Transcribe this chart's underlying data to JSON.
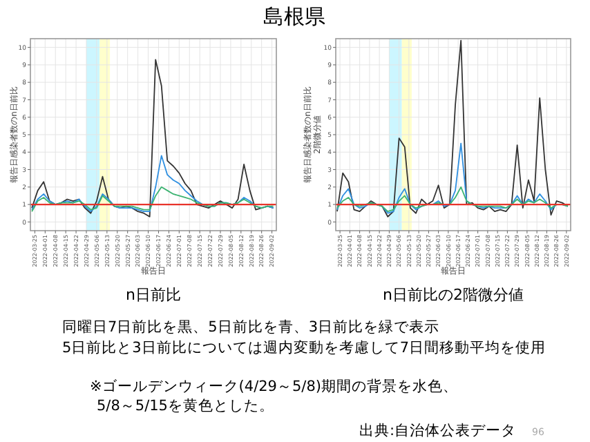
{
  "chart_data": [
    {
      "type": "other",
      "title": "島根県",
      "annotations": [
        "同曜日7日前比を黒、5日前比を青、3日前比を緑で表示",
        "5日前比と3日前比については週内変動を考慮して7日間移動平均を使用",
        "※ゴールデンウィーク(4/29～5/8)期間の背景を水色、",
        "5/8～5/15を黄色とした。",
        "出典:自治体公表データ",
        "96"
      ]
    },
    {
      "type": "line",
      "title": "n日前比",
      "xlabel": "報告日",
      "ylabel": "報告日感染者数のn日前比",
      "grid": true,
      "xlim": [
        "2022-03-22",
        "2022-09-05"
      ],
      "xticks": [
        {
          "value": "2022-03-25",
          "label": "2022-03-25"
        },
        {
          "value": "2022-04-01",
          "label": "2022-04-01"
        },
        {
          "value": "2022-04-08",
          "label": "2022-04-08"
        },
        {
          "value": "2022-04-15",
          "label": "2022-04-15"
        },
        {
          "value": "2022-04-22",
          "label": "2022-04-22"
        },
        {
          "value": "2022-04-29",
          "label": "2022-04-29"
        },
        {
          "value": "2022-05-06",
          "label": "2022-05-06"
        },
        {
          "value": "2022-05-13",
          "label": "2022-05-13"
        },
        {
          "value": "2022-05-20",
          "label": "2022-05-20"
        },
        {
          "value": "2022-05-27",
          "label": "2022-05-27"
        },
        {
          "value": "2022-06-03",
          "label": "2022-06-03"
        },
        {
          "value": "2022-06-10",
          "label": "2022-06-10"
        },
        {
          "value": "2022-06-17",
          "label": "2022-06-17"
        },
        {
          "value": "2022-06-24",
          "label": "2022-06-24"
        },
        {
          "value": "2022-07-01",
          "label": "2022-07-01"
        },
        {
          "value": "2022-07-08",
          "label": "2022-07-08"
        },
        {
          "value": "2022-07-15",
          "label": "2022-07-15"
        },
        {
          "value": "2022-07-22",
          "label": "2022-07-22"
        },
        {
          "value": "2022-07-29",
          "label": "2022-07-29"
        },
        {
          "value": "2022-08-05",
          "label": "2022-08-05"
        },
        {
          "value": "2022-08-12",
          "label": "2022-08-12"
        },
        {
          "value": "2022-08-19",
          "label": "2022-08-19"
        },
        {
          "value": "2022-08-26",
          "label": "2022-08-26"
        },
        {
          "value": "2022-09-02",
          "label": "2022-09-02"
        }
      ],
      "ylim": [
        -0.5,
        10.5
      ],
      "yticks": [
        0,
        1,
        2,
        3,
        4,
        5,
        6,
        7,
        8,
        9,
        10
      ],
      "x": [
        "2022-03-23",
        "2022-03-27",
        "2022-03-31",
        "2022-04-04",
        "2022-04-08",
        "2022-04-12",
        "2022-04-16",
        "2022-04-20",
        "2022-04-24",
        "2022-04-28",
        "2022-05-02",
        "2022-05-06",
        "2022-05-10",
        "2022-05-14",
        "2022-05-18",
        "2022-05-22",
        "2022-05-26",
        "2022-05-30",
        "2022-06-03",
        "2022-06-07",
        "2022-06-11",
        "2022-06-15",
        "2022-06-19",
        "2022-06-23",
        "2022-06-27",
        "2022-07-01",
        "2022-07-05",
        "2022-07-09",
        "2022-07-13",
        "2022-07-17",
        "2022-07-21",
        "2022-07-25",
        "2022-07-29",
        "2022-08-02",
        "2022-08-06",
        "2022-08-10",
        "2022-08-14",
        "2022-08-18",
        "2022-08-22",
        "2022-08-26",
        "2022-08-30",
        "2022-09-03"
      ],
      "series": [
        {
          "color": "#333333",
          "values": [
            0.8,
            1.8,
            2.3,
            1.2,
            1.0,
            1.1,
            1.3,
            1.2,
            1.3,
            0.8,
            0.5,
            1.2,
            2.6,
            1.3,
            0.9,
            0.8,
            0.9,
            0.8,
            0.6,
            0.5,
            0.3,
            9.3,
            7.8,
            3.5,
            3.2,
            2.8,
            2.2,
            1.8,
            1.0,
            0.9,
            0.8,
            1.0,
            1.2,
            1.0,
            0.8,
            1.3,
            3.3,
            1.8,
            0.7,
            0.8,
            0.9,
            0.8
          ]
        },
        {
          "color": "#2f8fe0",
          "values": [
            0.7,
            1.3,
            1.6,
            1.2,
            1.0,
            1.1,
            1.2,
            1.1,
            1.3,
            0.9,
            0.6,
            0.9,
            1.6,
            1.3,
            0.9,
            0.8,
            0.8,
            0.8,
            0.7,
            0.6,
            0.6,
            2.0,
            3.8,
            2.7,
            2.4,
            2.2,
            1.8,
            1.5,
            1.2,
            1.0,
            0.9,
            0.9,
            1.1,
            1.1,
            1.0,
            1.1,
            1.4,
            1.2,
            0.9,
            0.8,
            0.9,
            0.8
          ]
        },
        {
          "color": "#3cb371",
          "values": [
            0.6,
            1.2,
            1.4,
            1.1,
            1.0,
            1.1,
            1.1,
            1.1,
            1.2,
            1.0,
            0.7,
            0.8,
            1.5,
            1.2,
            0.9,
            0.9,
            0.9,
            0.9,
            0.8,
            0.7,
            0.7,
            1.5,
            2.0,
            1.8,
            1.6,
            1.5,
            1.4,
            1.3,
            1.1,
            1.0,
            0.9,
            0.9,
            1.1,
            1.1,
            1.0,
            1.1,
            1.3,
            1.1,
            0.9,
            0.8,
            0.9,
            0.9
          ]
        }
      ],
      "bands": [
        {
          "axis": "x",
          "from": "2022-04-29",
          "to": "2022-05-08",
          "color": "#ccf6ff"
        },
        {
          "axis": "x",
          "from": "2022-05-08",
          "to": "2022-05-15",
          "color": "#ffffcc"
        }
      ],
      "ref_lines": [
        {
          "axis": "y",
          "value": 1,
          "color": "#e8332a"
        }
      ]
    },
    {
      "type": "line",
      "title": "n日前比の2階微分値",
      "xlabel": "報告日",
      "ylabel": "報告日感染者数のn日前比\n2階微分値",
      "grid": true,
      "xlim": [
        "2022-03-22",
        "2022-09-05"
      ],
      "xticks": [
        {
          "value": "2022-03-25",
          "label": "2022-03-25"
        },
        {
          "value": "2022-04-01",
          "label": "2022-04-01"
        },
        {
          "value": "2022-04-08",
          "label": "2022-04-08"
        },
        {
          "value": "2022-04-15",
          "label": "2022-04-15"
        },
        {
          "value": "2022-04-22",
          "label": "2022-04-22"
        },
        {
          "value": "2022-04-29",
          "label": "2022-04-29"
        },
        {
          "value": "2022-05-06",
          "label": "2022-05-06"
        },
        {
          "value": "2022-05-13",
          "label": "2022-05-13"
        },
        {
          "value": "2022-05-20",
          "label": "2022-05-20"
        },
        {
          "value": "2022-05-27",
          "label": "2022-05-27"
        },
        {
          "value": "2022-06-03",
          "label": "2022-06-03"
        },
        {
          "value": "2022-06-10",
          "label": "2022-06-10"
        },
        {
          "value": "2022-06-17",
          "label": "2022-06-17"
        },
        {
          "value": "2022-06-24",
          "label": "2022-06-24"
        },
        {
          "value": "2022-07-01",
          "label": "2022-07-01"
        },
        {
          "value": "2022-07-08",
          "label": "2022-07-08"
        },
        {
          "value": "2022-07-15",
          "label": "2022-07-15"
        },
        {
          "value": "2022-07-22",
          "label": "2022-07-22"
        },
        {
          "value": "2022-07-29",
          "label": "2022-07-29"
        },
        {
          "value": "2022-08-05",
          "label": "2022-08-05"
        },
        {
          "value": "2022-08-12",
          "label": "2022-08-12"
        },
        {
          "value": "2022-08-19",
          "label": "2022-08-19"
        },
        {
          "value": "2022-08-26",
          "label": "2022-08-26"
        },
        {
          "value": "2022-09-02",
          "label": "2022-09-02"
        }
      ],
      "ylim": [
        -0.5,
        10.5
      ],
      "yticks": [
        0,
        1,
        2,
        3,
        4,
        5,
        6,
        7,
        8,
        9,
        10
      ],
      "x": [
        "2022-03-23",
        "2022-03-27",
        "2022-03-31",
        "2022-04-04",
        "2022-04-08",
        "2022-04-12",
        "2022-04-16",
        "2022-04-20",
        "2022-04-24",
        "2022-04-28",
        "2022-05-02",
        "2022-05-06",
        "2022-05-10",
        "2022-05-14",
        "2022-05-18",
        "2022-05-22",
        "2022-05-26",
        "2022-05-30",
        "2022-06-03",
        "2022-06-07",
        "2022-06-11",
        "2022-06-15",
        "2022-06-19",
        "2022-06-23",
        "2022-06-27",
        "2022-07-01",
        "2022-07-05",
        "2022-07-09",
        "2022-07-13",
        "2022-07-17",
        "2022-07-21",
        "2022-07-25",
        "2022-07-29",
        "2022-08-02",
        "2022-08-06",
        "2022-08-10",
        "2022-08-14",
        "2022-08-18",
        "2022-08-22",
        "2022-08-26",
        "2022-08-30",
        "2022-09-03"
      ],
      "series": [
        {
          "color": "#333333",
          "values": [
            0.6,
            2.8,
            2.3,
            0.7,
            0.6,
            0.9,
            1.2,
            1.0,
            0.9,
            0.3,
            0.6,
            4.8,
            4.3,
            0.8,
            0.5,
            1.3,
            1.0,
            1.2,
            2.1,
            0.8,
            1.0,
            6.7,
            10.4,
            1.0,
            1.1,
            0.8,
            0.7,
            0.9,
            0.6,
            0.7,
            0.6,
            1.0,
            4.4,
            0.8,
            2.4,
            1.2,
            7.1,
            3.0,
            0.4,
            1.2,
            1.1,
            0.9
          ]
        },
        {
          "color": "#2f8fe0",
          "values": [
            0.7,
            1.5,
            1.9,
            1.0,
            0.8,
            0.9,
            1.1,
            1.0,
            0.9,
            0.5,
            0.6,
            1.4,
            1.9,
            1.0,
            0.7,
            0.9,
            1.0,
            1.0,
            1.2,
            0.9,
            1.0,
            1.8,
            4.5,
            1.2,
            1.0,
            0.9,
            0.8,
            0.9,
            0.8,
            0.8,
            0.8,
            1.0,
            1.5,
            1.0,
            1.3,
            1.1,
            1.6,
            1.2,
            0.7,
            1.0,
            1.0,
            0.9
          ]
        },
        {
          "color": "#3cb371",
          "values": [
            0.8,
            1.2,
            1.4,
            1.0,
            0.9,
            1.0,
            1.1,
            1.0,
            0.9,
            0.6,
            0.7,
            1.2,
            1.5,
            1.0,
            0.8,
            0.9,
            1.0,
            1.0,
            1.1,
            1.0,
            1.0,
            1.4,
            2.0,
            1.2,
            1.0,
            0.9,
            0.9,
            0.9,
            0.9,
            0.9,
            0.8,
            1.0,
            1.3,
            1.0,
            1.2,
            1.1,
            1.3,
            1.1,
            0.8,
            1.0,
            1.0,
            0.9
          ]
        }
      ],
      "bands": [
        {
          "axis": "x",
          "from": "2022-04-29",
          "to": "2022-05-08",
          "color": "#ccf6ff"
        },
        {
          "axis": "x",
          "from": "2022-05-08",
          "to": "2022-05-15",
          "color": "#ffffcc"
        }
      ],
      "ref_lines": [
        {
          "axis": "y",
          "value": 1,
          "color": "#e8332a"
        }
      ]
    }
  ]
}
